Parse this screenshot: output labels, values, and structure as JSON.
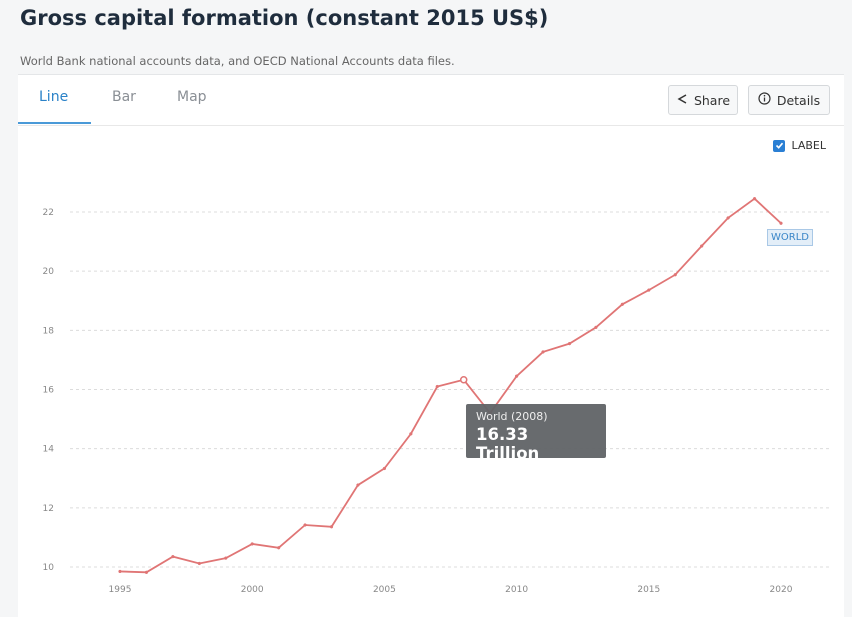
{
  "header": {
    "title": "Gross capital formation (constant 2015 US$)",
    "source": "World Bank national accounts data, and OECD National Accounts data files."
  },
  "tabs": [
    {
      "label": "Line",
      "active": true
    },
    {
      "label": "Bar",
      "active": false
    },
    {
      "label": "Map",
      "active": false
    }
  ],
  "toolbar": {
    "share_label": "Share",
    "details_label": "Details"
  },
  "label_toggle": {
    "label": "LABEL",
    "checked": true
  },
  "tooltip": {
    "heading": "World (2008)",
    "value": "16.33 Trillion"
  },
  "colors": {
    "series": "#e07575",
    "accent": "#2a82c8"
  },
  "chart_data": {
    "type": "line",
    "x": [
      1995,
      1996,
      1997,
      1998,
      1999,
      2000,
      2001,
      2002,
      2003,
      2004,
      2005,
      2006,
      2007,
      2008,
      2009,
      2010,
      2011,
      2012,
      2013,
      2014,
      2015,
      2016,
      2017,
      2018,
      2019,
      2020
    ],
    "series": [
      {
        "name": "WORLD",
        "values": [
          9.85,
          9.82,
          10.35,
          10.12,
          10.3,
          10.78,
          10.65,
          11.42,
          11.36,
          12.77,
          13.33,
          14.5,
          16.1,
          16.33,
          15.2,
          16.45,
          17.27,
          17.55,
          18.1,
          18.88,
          19.36,
          19.88,
          20.85,
          21.8,
          22.45,
          21.62
        ]
      }
    ],
    "xticks": [
      1995,
      2000,
      2005,
      2010,
      2015,
      2020
    ],
    "yticks": [
      10,
      12,
      14,
      16,
      18,
      20,
      22
    ],
    "xlim": [
      1995,
      2020
    ],
    "ylim": [
      10,
      22
    ],
    "grid": true,
    "highlight_year": 2008
  }
}
